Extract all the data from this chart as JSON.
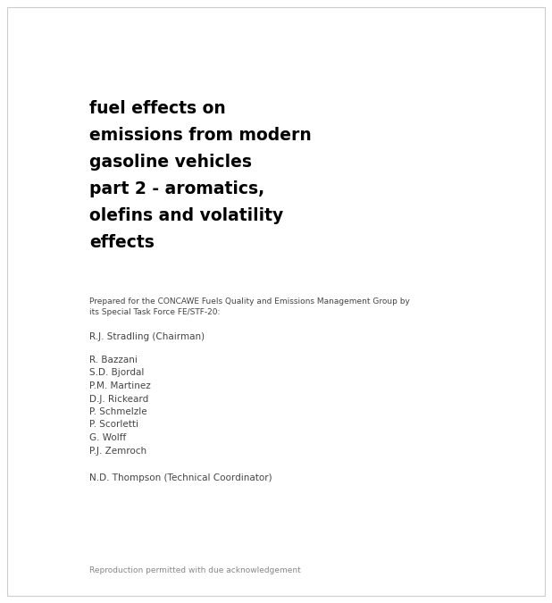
{
  "background_color": "#ffffff",
  "border_color": "#cccccc",
  "title_lines": [
    "fuel effects on",
    "emissions from modern",
    "gasoline vehicles",
    "part 2 - aromatics,",
    "olefins and volatility",
    "effects"
  ],
  "title_fontsize": 13.5,
  "title_color": "#000000",
  "prepared_text": "Prepared for the CONCAWE Fuels Quality and Emissions Management Group by\nits Special Task Force FE/STF-20:",
  "prepared_fontsize": 6.5,
  "prepared_color": "#444444",
  "chairman": "R.J. Stradling (Chairman)",
  "chairman_fontsize": 7.5,
  "chairman_color": "#444444",
  "members": [
    "R. Bazzani",
    "S.D. Bjordal",
    "P.M. Martinez",
    "D.J. Rickeard",
    "P. Schmelzle",
    "P. Scorletti",
    "G. Wolff",
    "P.J. Zemroch"
  ],
  "members_fontsize": 7.5,
  "members_color": "#444444",
  "coordinator": "N.D. Thompson (Technical Coordinator)",
  "coordinator_fontsize": 7.5,
  "coordinator_color": "#444444",
  "footer_text": "Reproduction permitted with due acknowledgement",
  "footer_fontsize": 6.5,
  "footer_color": "#888888"
}
